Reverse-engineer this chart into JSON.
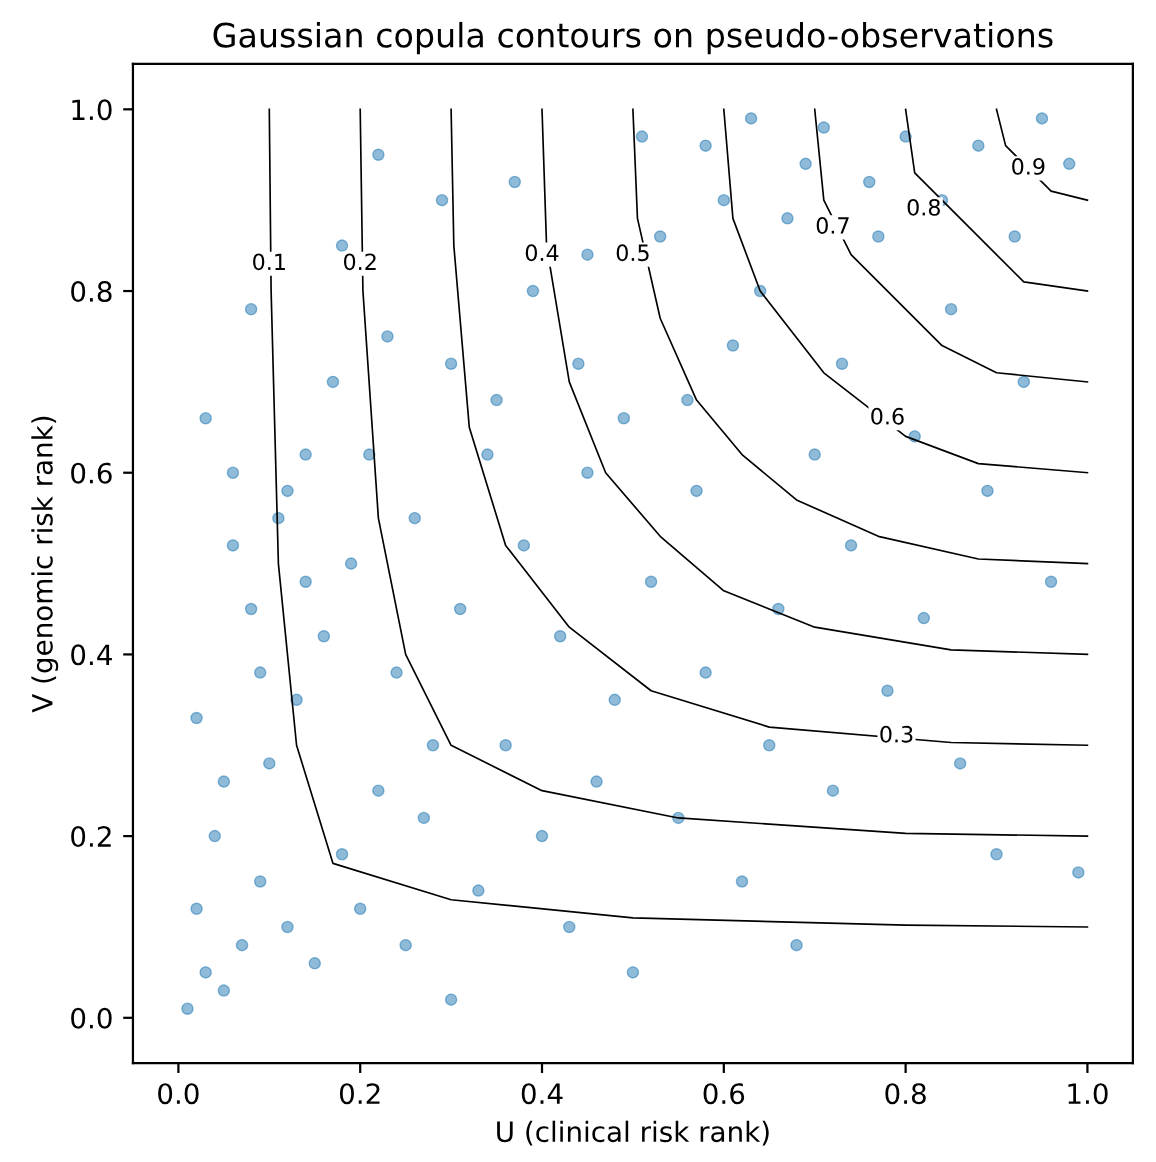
{
  "chart_data": {
    "type": "scatter",
    "title": "Gaussian copula contours on pseudo-observations",
    "xlabel": "U (clinical risk rank)",
    "ylabel": "V (genomic risk rank)",
    "xlim": [
      -0.05,
      1.05
    ],
    "ylim": [
      -0.05,
      1.05
    ],
    "xticks": [
      {
        "value": 0,
        "label": "0.0"
      },
      0.2,
      0.4,
      0.6,
      0.8,
      {
        "value": 1,
        "label": "1.0"
      }
    ],
    "yticks": [
      {
        "value": 0,
        "label": "0.0"
      },
      0.2,
      0.4,
      0.6,
      0.8,
      {
        "value": 1,
        "label": "1.0"
      }
    ],
    "grid": false,
    "series": [
      {
        "marker": "circle",
        "color": "#1f77b4",
        "x": [
          0.01,
          0.03,
          0.02,
          0.05,
          0.07,
          0.04,
          0.09,
          0.12,
          0.1,
          0.15,
          0.13,
          0.18,
          0.2,
          0.22,
          0.25,
          0.28,
          0.3,
          0.08,
          0.06,
          0.11,
          0.16,
          0.19,
          0.24,
          0.27,
          0.33,
          0.36,
          0.4,
          0.43,
          0.46,
          0.5,
          0.02,
          0.05,
          0.09,
          0.14,
          0.17,
          0.21,
          0.26,
          0.31,
          0.35,
          0.38,
          0.42,
          0.45,
          0.48,
          0.52,
          0.55,
          0.58,
          0.62,
          0.65,
          0.68,
          0.72,
          0.03,
          0.08,
          0.12,
          0.18,
          0.23,
          0.29,
          0.34,
          0.39,
          0.44,
          0.49,
          0.53,
          0.57,
          0.61,
          0.66,
          0.7,
          0.74,
          0.78,
          0.82,
          0.86,
          0.9,
          0.06,
          0.14,
          0.22,
          0.3,
          0.37,
          0.45,
          0.51,
          0.56,
          0.6,
          0.64,
          0.69,
          0.73,
          0.77,
          0.81,
          0.85,
          0.89,
          0.93,
          0.96,
          0.99,
          0.58,
          0.63,
          0.67,
          0.71,
          0.76,
          0.8,
          0.84,
          0.88,
          0.92,
          0.95,
          0.98
        ],
        "values": [
          0.01,
          0.05,
          0.12,
          0.03,
          0.08,
          0.2,
          0.15,
          0.1,
          0.28,
          0.06,
          0.35,
          0.18,
          0.12,
          0.25,
          0.08,
          0.3,
          0.02,
          0.45,
          0.6,
          0.55,
          0.42,
          0.5,
          0.38,
          0.22,
          0.14,
          0.3,
          0.2,
          0.1,
          0.26,
          0.05,
          0.33,
          0.26,
          0.38,
          0.48,
          0.7,
          0.62,
          0.55,
          0.45,
          0.68,
          0.52,
          0.42,
          0.6,
          0.35,
          0.48,
          0.22,
          0.38,
          0.15,
          0.3,
          0.08,
          0.25,
          0.66,
          0.78,
          0.58,
          0.85,
          0.75,
          0.9,
          0.62,
          0.8,
          0.72,
          0.66,
          0.86,
          0.58,
          0.74,
          0.45,
          0.62,
          0.52,
          0.36,
          0.44,
          0.28,
          0.18,
          0.52,
          0.62,
          0.95,
          0.72,
          0.92,
          0.84,
          0.97,
          0.68,
          0.9,
          0.8,
          0.94,
          0.72,
          0.86,
          0.64,
          0.78,
          0.58,
          0.7,
          0.48,
          0.16,
          0.96,
          0.99,
          0.88,
          0.98,
          0.92,
          0.97,
          0.9,
          0.96,
          0.86,
          0.99,
          0.94
        ]
      },
      {
        "type": "line",
        "color": "#000000",
        "x": [
          0.1,
          0.102,
          0.11,
          0.13,
          0.17,
          0.3,
          0.5,
          0.8,
          1.0
        ],
        "values": [
          1.0,
          0.8,
          0.5,
          0.3,
          0.17,
          0.13,
          0.11,
          0.102,
          0.1
        ]
      },
      {
        "type": "line",
        "color": "#000000",
        "x": [
          0.2,
          0.203,
          0.22,
          0.25,
          0.3,
          0.4,
          0.55,
          0.8,
          1.0
        ],
        "values": [
          1.0,
          0.8,
          0.55,
          0.4,
          0.3,
          0.25,
          0.22,
          0.203,
          0.2
        ]
      },
      {
        "type": "line",
        "color": "#000000",
        "x": [
          0.3,
          0.303,
          0.32,
          0.36,
          0.43,
          0.52,
          0.65,
          0.85,
          1.0
        ],
        "values": [
          1.0,
          0.85,
          0.65,
          0.52,
          0.43,
          0.36,
          0.32,
          0.303,
          0.3
        ]
      },
      {
        "type": "line",
        "color": "#000000",
        "x": [
          0.4,
          0.405,
          0.43,
          0.47,
          0.53,
          0.6,
          0.7,
          0.85,
          1.0
        ],
        "values": [
          1.0,
          0.85,
          0.7,
          0.6,
          0.53,
          0.47,
          0.43,
          0.405,
          0.4
        ]
      },
      {
        "type": "line",
        "color": "#000000",
        "x": [
          0.5,
          0.505,
          0.53,
          0.57,
          0.62,
          0.68,
          0.77,
          0.88,
          1.0
        ],
        "values": [
          1.0,
          0.88,
          0.77,
          0.68,
          0.62,
          0.57,
          0.53,
          0.505,
          0.5
        ]
      },
      {
        "type": "line",
        "color": "#000000",
        "x": [
          0.6,
          0.61,
          0.64,
          0.71,
          0.8,
          0.88,
          1.0
        ],
        "values": [
          1.0,
          0.88,
          0.8,
          0.71,
          0.64,
          0.61,
          0.6
        ]
      },
      {
        "type": "line",
        "color": "#000000",
        "x": [
          0.7,
          0.71,
          0.74,
          0.79,
          0.84,
          0.9,
          1.0
        ],
        "values": [
          1.0,
          0.9,
          0.84,
          0.79,
          0.74,
          0.71,
          0.7
        ]
      },
      {
        "type": "line",
        "color": "#000000",
        "x": [
          0.8,
          0.81,
          0.87,
          0.93,
          1.0
        ],
        "values": [
          1.0,
          0.93,
          0.87,
          0.81,
          0.8
        ]
      },
      {
        "type": "line",
        "color": "#000000",
        "x": [
          0.9,
          0.91,
          0.96,
          1.0
        ],
        "values": [
          1.0,
          0.96,
          0.91,
          0.9
        ]
      }
    ],
    "annotations": [
      {
        "text": "0.1",
        "x": 0.1,
        "y": 0.83
      },
      {
        "text": "0.2",
        "x": 0.2,
        "y": 0.83
      },
      {
        "text": "0.4",
        "x": 0.4,
        "y": 0.84
      },
      {
        "text": "0.5",
        "x": 0.5,
        "y": 0.84
      },
      {
        "text": "0.7",
        "x": 0.72,
        "y": 0.87
      },
      {
        "text": "0.8",
        "x": 0.82,
        "y": 0.89
      },
      {
        "text": "0.9",
        "x": 0.935,
        "y": 0.935
      },
      {
        "text": "0.6",
        "x": 0.78,
        "y": 0.66
      },
      {
        "text": "0.3",
        "x": 0.79,
        "y": 0.31
      }
    ]
  }
}
